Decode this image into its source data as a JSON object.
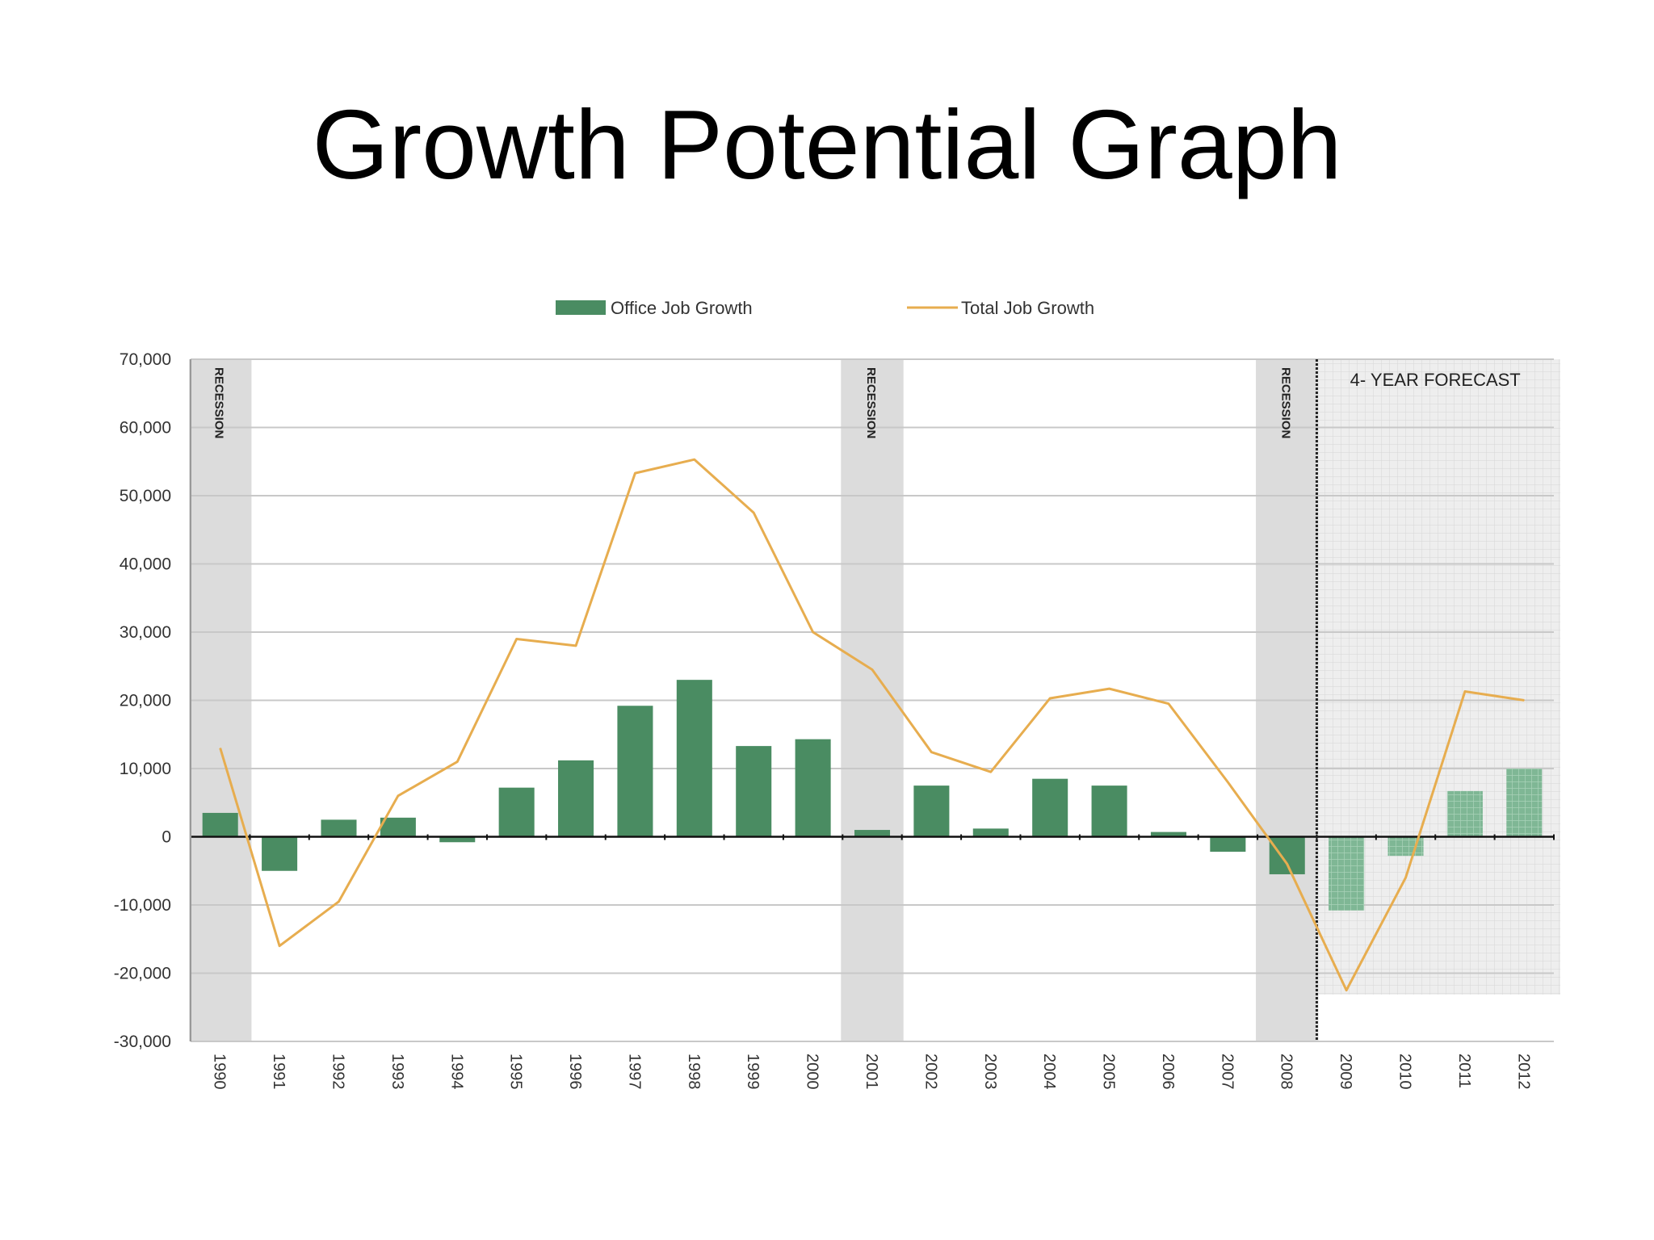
{
  "title": "Growth Potential Graph",
  "colors": {
    "office_bar": "#4a8c62",
    "forecast_bar": "#7fb795",
    "total_line": "#e7ad4f",
    "recession_band": "#dcdcdc",
    "forecast_area": "#eeeeee"
  },
  "chart_data": {
    "type": "bar",
    "x": [
      "1990",
      "1991",
      "1992",
      "1993",
      "1994",
      "1995",
      "1996",
      "1997",
      "1998",
      "1999",
      "2000",
      "2001",
      "2002",
      "2003",
      "2004",
      "2005",
      "2006",
      "2007",
      "2008",
      "2009",
      "2010",
      "2011",
      "2012"
    ],
    "ylim": [
      -30000,
      70000
    ],
    "yticks": [
      70000,
      60000,
      50000,
      40000,
      30000,
      20000,
      10000,
      0,
      -10000,
      -20000,
      -30000
    ],
    "ytick_labels": [
      "70,000",
      "60,000",
      "50,000",
      "40,000",
      "30,000",
      "20,000",
      "10,000",
      "0",
      "-10,000",
      "-20,000",
      "-30,000"
    ],
    "grid": true,
    "legend": "top-center",
    "series": [
      {
        "name": "Office Job Growth",
        "type": "bar",
        "values": [
          3500,
          -5000,
          2500,
          2800,
          -800,
          7200,
          11200,
          19200,
          23000,
          13300,
          14300,
          1000,
          7500,
          1200,
          8500,
          7500,
          700,
          -2200,
          -5500,
          -10800,
          -2800,
          6700,
          10000
        ]
      },
      {
        "name": "Total Job Growth",
        "type": "line",
        "values": [
          13000,
          -16000,
          -9500,
          6000,
          11000,
          29000,
          28000,
          53300,
          55300,
          47500,
          30000,
          24500,
          12400,
          9500,
          20300,
          21700,
          19500,
          8000,
          -4000,
          -22500,
          -6000,
          21300,
          20000
        ]
      }
    ],
    "annotations": {
      "recession_label": "RECESSION",
      "recession_years": [
        "1990",
        "2001",
        "2008"
      ],
      "forecast_label": "4- YEAR FORECAST",
      "forecast_years": [
        "2009",
        "2010",
        "2011",
        "2012"
      ]
    }
  }
}
